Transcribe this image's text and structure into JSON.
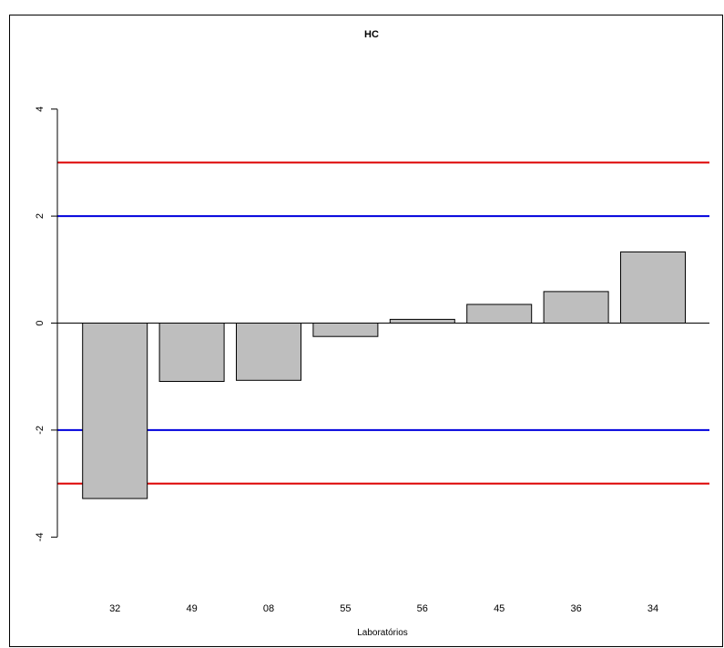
{
  "chart_data": {
    "type": "bar",
    "title": "HC",
    "xlabel": "Laboratórios",
    "ylabel": "",
    "categories": [
      "32",
      "49",
      "08",
      "55",
      "56",
      "45",
      "36",
      "34"
    ],
    "values": [
      -3.28,
      -1.09,
      -1.07,
      -0.25,
      0.07,
      0.35,
      0.59,
      1.33
    ],
    "ylim": [
      -5.0,
      4.0
    ],
    "yticks": [
      -4,
      -2,
      0,
      2,
      4
    ],
    "ytick_labels": [
      "-4",
      "-2",
      "0",
      "2",
      "4"
    ],
    "reference_lines": [
      {
        "value": 3,
        "color": "#dd0000"
      },
      {
        "value": 2,
        "color": "#0000dd"
      },
      {
        "value": -2,
        "color": "#0000dd"
      },
      {
        "value": -3,
        "color": "#dd0000"
      }
    ],
    "bar_color": "#bebebe",
    "grid": false,
    "legend": "none"
  }
}
